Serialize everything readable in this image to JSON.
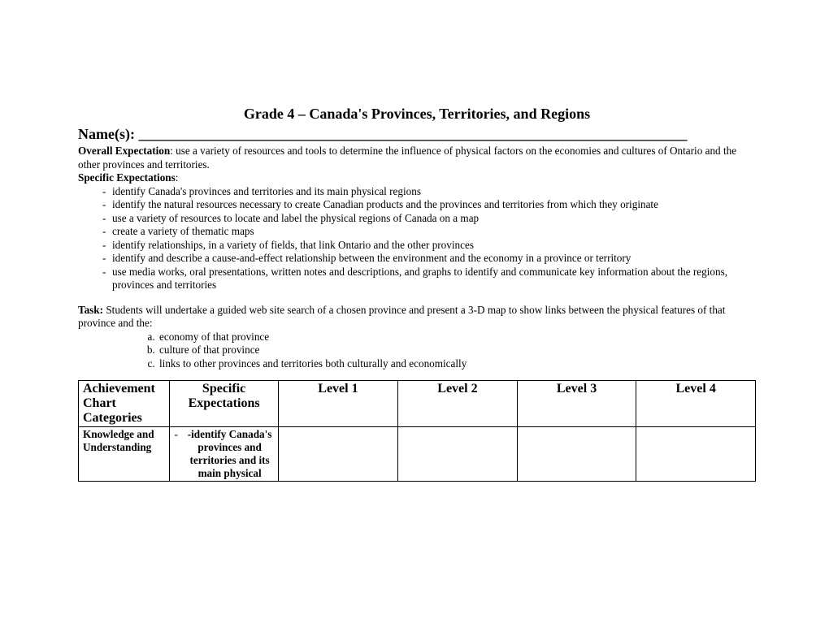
{
  "title": "Grade 4 – Canada's Provinces, Territories, and Regions",
  "names_label": "Name(s):",
  "names_line": "___________________________________________________________________________",
  "overall_label": "Overall Expectation",
  "overall_text": ": use a variety of resources and tools to determine the influence of physical factors on the economies and cultures of Ontario and the other provinces and territories.",
  "spec_label": "Specific Expectations",
  "spec_colon": ":",
  "spec_items": [
    "identify Canada's provinces and territories and its main physical regions",
    "identify the natural resources necessary to create Canadian products and the provinces and territories from which they originate",
    "use a variety of resources to locate and label the physical regions of Canada on a map",
    "create a variety of thematic maps",
    "identify relationships, in a variety of fields, that link Ontario and the other provinces",
    "identify and describe a cause-and-effect relationship between the environment and the economy in a province or territory",
    "use media works, oral presentations, written notes and descriptions, and graphs to identify and communicate key information about the regions, provinces and territories"
  ],
  "task_label": "Task:",
  "task_text": " Students will undertake a guided web site search of a chosen province and present a 3-D map to show links between the physical features of that province and the:",
  "task_items": [
    "economy of that province",
    "culture of that province",
    "links to other provinces and territories both culturally and economically"
  ],
  "table": {
    "headers": [
      "Achievement Chart Categories",
      "Specific Expectations",
      "Level 1",
      "Level 2",
      "Level 3",
      "Level 4"
    ],
    "row1_label": "Knowledge and Understanding",
    "row1_spec": "-identify Canada's provinces and territories and its main physical"
  }
}
